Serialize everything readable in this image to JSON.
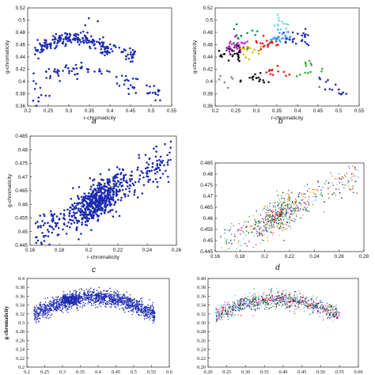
{
  "chart_data": [
    {
      "panel": "a",
      "type": "scatter",
      "style": "matlab",
      "color": "#1c2bb0",
      "xlabel": "r-chromaticity",
      "ylabel": "g-chromaticity",
      "xlim": [
        0.15,
        0.55
      ],
      "ylim": [
        0.36,
        0.53
      ],
      "xticks": [
        "0.2",
        "0.25",
        "0.3",
        "0.35",
        "0.4",
        "0.45",
        "0.5",
        "0.55"
      ],
      "yticks": [
        "0.36",
        "0.38",
        "0.4",
        "0.42",
        "0.44",
        "0.46",
        "0.48",
        "0.5",
        "0.52"
      ],
      "clusters": [
        {
          "n": 170,
          "x": [
            0.17,
            0.38
          ],
          "ymode": "arc",
          "ybase": 0.455,
          "yamp": 0.022,
          "spread": 0.006
        },
        {
          "n": 40,
          "x": [
            0.35,
            0.45
          ],
          "ymode": "slope",
          "y0": 0.47,
          "y1": 0.445,
          "spread": 0.008
        },
        {
          "n": 45,
          "x": [
            0.2,
            0.37
          ],
          "ymode": "arc",
          "ybase": 0.412,
          "yamp": 0.012,
          "spread": 0.006
        },
        {
          "n": 35,
          "x": [
            0.37,
            0.52
          ],
          "ymode": "slope",
          "y0": 0.415,
          "y1": 0.38,
          "spread": 0.008
        },
        {
          "n": 10,
          "x": [
            0.16,
            0.22
          ],
          "ymode": "flat",
          "ybase": 0.39,
          "spread": 0.02
        }
      ],
      "points": [
        [
          0.32,
          0.512
        ],
        [
          0.31,
          0.5
        ],
        [
          0.345,
          0.507
        ],
        [
          0.18,
          0.368
        ],
        [
          0.2,
          0.378
        ],
        [
          0.43,
          0.39
        ]
      ]
    },
    {
      "panel": "b",
      "type": "scatter",
      "style": "matlab",
      "multicolor": true,
      "xlabel": "r-chromaticity",
      "ylabel": "g-chromaticity",
      "xlim": [
        0.15,
        0.55
      ],
      "ylim": [
        0.36,
        0.53
      ],
      "xticks": [
        "0.2",
        "0.25",
        "0.3",
        "0.35",
        "0.4",
        "0.45",
        "0.5",
        "0.55"
      ],
      "yticks": [
        "0.36",
        "0.38",
        "0.4",
        "0.42",
        "0.44",
        "0.46",
        "0.48",
        "0.5",
        "0.52"
      ],
      "clusters": [
        {
          "n": 25,
          "x": [
            0.18,
            0.23
          ],
          "ymode": "flat",
          "ybase": 0.462,
          "spread": 0.008,
          "color": "#8a1c9e"
        },
        {
          "n": 20,
          "x": [
            0.19,
            0.24
          ],
          "ymode": "flat",
          "ybase": 0.472,
          "spread": 0.006,
          "color": "#d633d6"
        },
        {
          "n": 22,
          "x": [
            0.16,
            0.22
          ],
          "ymode": "flat",
          "ybase": 0.448,
          "spread": 0.006,
          "color": "#111111"
        },
        {
          "n": 18,
          "x": [
            0.22,
            0.28
          ],
          "ymode": "flat",
          "ybase": 0.455,
          "spread": 0.006,
          "color": "#e0b400"
        },
        {
          "n": 22,
          "x": [
            0.26,
            0.33
          ],
          "ymode": "flat",
          "ybase": 0.47,
          "spread": 0.008,
          "color": "#e21b1b"
        },
        {
          "n": 25,
          "x": [
            0.3,
            0.37
          ],
          "ymode": "flat",
          "ybase": 0.478,
          "spread": 0.006,
          "color": "#4fa3ff"
        },
        {
          "n": 25,
          "x": [
            0.34,
            0.41
          ],
          "ymode": "flat",
          "ybase": 0.477,
          "spread": 0.006,
          "color": "#1c2bb0"
        },
        {
          "n": 14,
          "x": [
            0.31,
            0.36
          ],
          "ymode": "flat",
          "ybase": 0.5,
          "spread": 0.01,
          "color": "#6fd6e8"
        },
        {
          "n": 12,
          "x": [
            0.2,
            0.27
          ],
          "ymode": "flat",
          "ybase": 0.485,
          "spread": 0.01,
          "color": "#0a8c5a"
        },
        {
          "n": 16,
          "x": [
            0.22,
            0.3
          ],
          "ymode": "flat",
          "ybase": 0.406,
          "spread": 0.005,
          "color": "#111111"
        },
        {
          "n": 12,
          "x": [
            0.29,
            0.36
          ],
          "ymode": "flat",
          "ybase": 0.418,
          "spread": 0.005,
          "color": "#e21b1b"
        },
        {
          "n": 14,
          "x": [
            0.36,
            0.45
          ],
          "ymode": "flat",
          "ybase": 0.42,
          "spread": 0.008,
          "color": "#2fb02f"
        },
        {
          "n": 14,
          "x": [
            0.43,
            0.52
          ],
          "ymode": "slope",
          "y0": 0.405,
          "y1": 0.38,
          "spread": 0.006,
          "color": "#1c2bb0"
        },
        {
          "n": 6,
          "x": [
            0.16,
            0.2
          ],
          "ymode": "flat",
          "ybase": 0.39,
          "spread": 0.015,
          "color": "#888888"
        }
      ],
      "points": []
    },
    {
      "panel": "c",
      "type": "scatter",
      "style": "matlab",
      "color": "#1c2bb0",
      "xlabel": "r-chromaticity",
      "ylabel": "g-chromaticity",
      "xlim": [
        0.145,
        0.275
      ],
      "ylim": [
        0.445,
        0.485
      ],
      "xticks": [
        "0.16",
        "0.18",
        "0.2",
        "0.22",
        "0.24",
        "0.26"
      ],
      "yticks": [
        "0.445",
        "0.45",
        "0.455",
        "0.46",
        "0.465",
        "0.47",
        "0.475",
        "0.48",
        "0.485"
      ],
      "clusters": [
        {
          "n": 700,
          "x": [
            0.15,
            0.27
          ],
          "ymode": "diag",
          "x0": 0.15,
          "y0": 0.448,
          "slope": 0.24,
          "spread": 0.0035,
          "dense": [
            0.205,
            0.012
          ]
        }
      ],
      "points": [
        [
          0.27,
          0.483
        ],
        [
          0.263,
          0.476
        ],
        [
          0.155,
          0.446
        ]
      ]
    },
    {
      "panel": "d",
      "type": "scatter",
      "style": "matlab",
      "multicolor": true,
      "tiny": true,
      "xlabel": "",
      "ylabel": "",
      "xlim": [
        0.145,
        0.285
      ],
      "ylim": [
        0.445,
        0.485
      ],
      "xticks": [
        "0.16",
        "0.18",
        "0.2",
        "0.22",
        "0.24",
        "0.26",
        "0.28"
      ],
      "yticks": [
        "0.445",
        "0.45",
        "0.455",
        "0.46",
        "0.465",
        "0.47",
        "0.475",
        "0.48",
        "0.485"
      ],
      "clusters": [
        {
          "n": 700,
          "x": [
            0.15,
            0.28
          ],
          "ymode": "diag",
          "x0": 0.15,
          "y0": 0.448,
          "slope": 0.24,
          "spread": 0.0035,
          "dense": [
            0.205,
            0.012
          ],
          "palette": [
            "#1c2bb0",
            "#2fb02f",
            "#e21b1b",
            "#d633d6",
            "#4fa3ff",
            "#111111",
            "#e0b400",
            "#6fd6e8",
            "#0a8c5a",
            "#ff8c1a"
          ]
        }
      ],
      "points": []
    },
    {
      "panel": "e",
      "type": "scatter",
      "style": "serif",
      "color": "#1c2bb0",
      "tiny": true,
      "xlabel": "r-chromaticity",
      "ylabel": "g-chromaticity",
      "xlim": [
        0.2,
        0.6
      ],
      "ylim": [
        0.2,
        0.4
      ],
      "xticks": [
        "0.2",
        "0.25",
        "0.3",
        "0.35",
        "0.4",
        "0.45",
        "0.5",
        "0.55",
        "0.6"
      ],
      "yticks": [
        "0.2",
        "0.22",
        "0.24",
        "0.26",
        "0.28",
        "0.3",
        "0.32",
        "0.34",
        "0.36",
        "0.38",
        "0.4"
      ],
      "clusters": [
        {
          "n": 1400,
          "x": [
            0.22,
            0.56
          ],
          "ymode": "arc",
          "ybase": 0.318,
          "yamp": 0.04,
          "spread": 0.009
        },
        {
          "n": 200,
          "x": [
            0.3,
            0.34
          ],
          "ymode": "flat",
          "ybase": 0.352,
          "spread": 0.006
        }
      ],
      "points": []
    },
    {
      "panel": "f",
      "type": "scatter",
      "style": "serif",
      "multicolor": true,
      "tiny": true,
      "xlabel": "",
      "ylabel": "",
      "xlim": [
        0.2,
        0.6
      ],
      "ylim": [
        0.2,
        0.4
      ],
      "xticks": [
        "0.20",
        "0.25",
        "0.30",
        "0.35",
        "0.40",
        "0.45",
        "0.50",
        "0.55",
        "0.60"
      ],
      "yticks": [
        "0.20",
        "0.22",
        "0.24",
        "0.26",
        "0.28",
        "0.30",
        "0.32",
        "0.34",
        "0.36",
        "0.38",
        "0.40"
      ],
      "clusters": [
        {
          "n": 900,
          "x": [
            0.22,
            0.55
          ],
          "ymode": "arc",
          "ybase": 0.318,
          "yamp": 0.035,
          "spread": 0.009,
          "palette": [
            "#1c2bb0",
            "#2fb02f",
            "#e21b1b",
            "#d633d6",
            "#4fa3ff",
            "#111111",
            "#6fd6e8",
            "#9c9c9c"
          ]
        }
      ],
      "points": []
    }
  ],
  "panel_labels": {
    "a": "a",
    "b": "b",
    "c": "c",
    "d": "d"
  }
}
